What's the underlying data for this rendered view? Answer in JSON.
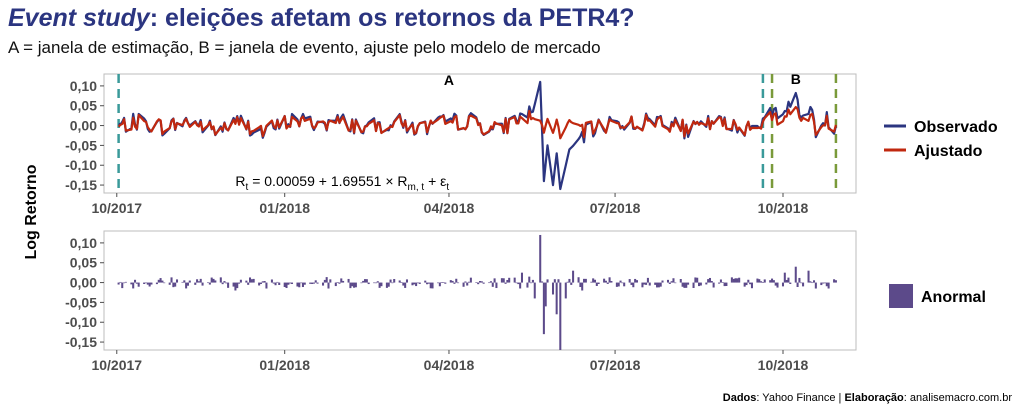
{
  "header": {
    "title_italic": "Event study",
    "title_rest": ": eleições afetam os retornos da PETR4?",
    "subtitle": "A = janela de estimação, B = janela de evento, ajuste pelo modelo de mercado"
  },
  "caption": {
    "dados_label": "Dados",
    "dados_value": ": Yahoo Finance | ",
    "elab_label": "Elaboração",
    "elab_value": ": analisemacro.com.br"
  },
  "colors": {
    "observado": "#2b3580",
    "ajustado": "#c0280f",
    "anormal": "#5c4a8a",
    "vline_teal": "#3a9a9a",
    "vline_green": "#7a9a3a",
    "panel_border": "#bdbdbd"
  },
  "chart_data": [
    {
      "type": "line",
      "panel": "top",
      "ylabel": "Log Retorno",
      "ylim": [
        -0.17,
        0.13
      ],
      "yticks": [
        "0,10",
        "0,05",
        "0,00",
        "-0,05",
        "-0,10",
        "-0,15"
      ],
      "ytick_values": [
        0.1,
        0.05,
        0.0,
        -0.05,
        -0.1,
        -0.15
      ],
      "xticks": [
        "10/2017",
        "01/2018",
        "04/2018",
        "07/2018",
        "10/2018"
      ],
      "xtick_dates": [
        "2017-10-01",
        "2018-01-01",
        "2018-04-01",
        "2018-07-01",
        "2018-10-01"
      ],
      "xlim": [
        "2017-09-24",
        "2018-11-10"
      ],
      "vlines": [
        {
          "date": "2017-10-02",
          "color": "teal"
        },
        {
          "date": "2018-09-20",
          "color": "teal"
        },
        {
          "date": "2018-09-25",
          "color": "green"
        },
        {
          "date": "2018-10-30",
          "color": "green"
        }
      ],
      "annotations": [
        {
          "text": "A",
          "date": "2018-04-01",
          "y": 0.115
        },
        {
          "text": "B",
          "date": "2018-10-08",
          "y": 0.118
        }
      ],
      "equation": {
        "lhs": "R",
        "lhs_sub": "t",
        "rhs1": " = 0.00059 + 1.69551 × R",
        "rhs1_sub": "m, t",
        "rhs2": " + ε",
        "rhs2_sub": "t",
        "date": "2017-12-05",
        "y": -0.14
      },
      "series": [
        {
          "name": "Observado",
          "anchors": [
            [
              "2017-10-02",
              0.0
            ],
            [
              "2017-10-13",
              0.01
            ],
            [
              "2017-10-27",
              -0.005
            ],
            [
              "2017-11-10",
              0.012
            ],
            [
              "2017-11-24",
              -0.012
            ],
            [
              "2017-12-08",
              0.01
            ],
            [
              "2017-12-20",
              -0.02
            ],
            [
              "2018-01-05",
              0.015
            ],
            [
              "2018-01-19",
              0.005
            ],
            [
              "2018-02-02",
              0.01
            ],
            [
              "2018-02-16",
              -0.008
            ],
            [
              "2018-03-02",
              0.012
            ],
            [
              "2018-03-16",
              -0.01
            ],
            [
              "2018-03-30",
              0.008
            ],
            [
              "2018-04-13",
              0.012
            ],
            [
              "2018-04-27",
              -0.015
            ],
            [
              "2018-05-09",
              0.02
            ],
            [
              "2018-05-17",
              0.035
            ],
            [
              "2018-05-21",
              0.11
            ],
            [
              "2018-05-23",
              -0.14
            ],
            [
              "2018-05-25",
              -0.05
            ],
            [
              "2018-05-28",
              -0.15
            ],
            [
              "2018-05-30",
              -0.07
            ],
            [
              "2018-06-01",
              -0.16
            ],
            [
              "2018-06-06",
              -0.06
            ],
            [
              "2018-06-15",
              -0.02
            ],
            [
              "2018-06-29",
              0.01
            ],
            [
              "2018-07-13",
              0.005
            ],
            [
              "2018-07-27",
              0.018
            ],
            [
              "2018-08-10",
              -0.015
            ],
            [
              "2018-08-24",
              0.01
            ],
            [
              "2018-09-07",
              -0.008
            ],
            [
              "2018-09-21",
              0.015
            ],
            [
              "2018-10-01",
              0.05
            ],
            [
              "2018-10-05",
              0.04
            ],
            [
              "2018-10-08",
              0.09
            ],
            [
              "2018-10-10",
              0.02
            ],
            [
              "2018-10-15",
              0.05
            ],
            [
              "2018-10-19",
              -0.01
            ],
            [
              "2018-10-25",
              0.015
            ],
            [
              "2018-10-30",
              -0.005
            ]
          ]
        },
        {
          "name": "Ajustado",
          "anchors": [
            [
              "2017-10-02",
              -0.005
            ],
            [
              "2017-10-13",
              0.008
            ],
            [
              "2017-10-27",
              -0.003
            ],
            [
              "2017-11-10",
              0.01
            ],
            [
              "2017-11-24",
              -0.01
            ],
            [
              "2017-12-08",
              0.008
            ],
            [
              "2017-12-20",
              -0.015
            ],
            [
              "2018-01-05",
              0.012
            ],
            [
              "2018-01-19",
              0.004
            ],
            [
              "2018-02-02",
              0.008
            ],
            [
              "2018-02-16",
              -0.006
            ],
            [
              "2018-03-02",
              0.01
            ],
            [
              "2018-03-16",
              -0.008
            ],
            [
              "2018-03-30",
              0.006
            ],
            [
              "2018-04-13",
              0.01
            ],
            [
              "2018-04-27",
              -0.012
            ],
            [
              "2018-05-09",
              0.015
            ],
            [
              "2018-05-17",
              0.02
            ],
            [
              "2018-05-21",
              0.01
            ],
            [
              "2018-05-23",
              -0.015
            ],
            [
              "2018-05-25",
              0.02
            ],
            [
              "2018-05-28",
              -0.02
            ],
            [
              "2018-05-30",
              0.015
            ],
            [
              "2018-06-01",
              -0.03
            ],
            [
              "2018-06-06",
              0.01
            ],
            [
              "2018-06-15",
              -0.015
            ],
            [
              "2018-06-29",
              0.008
            ],
            [
              "2018-07-13",
              0.004
            ],
            [
              "2018-07-27",
              0.015
            ],
            [
              "2018-08-10",
              -0.012
            ],
            [
              "2018-08-24",
              0.008
            ],
            [
              "2018-09-07",
              -0.006
            ],
            [
              "2018-09-21",
              0.01
            ],
            [
              "2018-10-01",
              0.03
            ],
            [
              "2018-10-05",
              0.025
            ],
            [
              "2018-10-08",
              0.05
            ],
            [
              "2018-10-10",
              0.015
            ],
            [
              "2018-10-15",
              0.03
            ],
            [
              "2018-10-19",
              -0.008
            ],
            [
              "2018-10-25",
              0.01
            ],
            [
              "2018-10-30",
              -0.003
            ]
          ]
        }
      ],
      "legend": {
        "position": "right",
        "entries": [
          "Observado",
          "Ajustado"
        ]
      }
    },
    {
      "type": "bar",
      "panel": "bottom",
      "ylim": [
        -0.17,
        0.13
      ],
      "yticks": [
        "0,10",
        "0,05",
        "0,00",
        "-0,05",
        "-0,10",
        "-0,15"
      ],
      "ytick_values": [
        0.1,
        0.05,
        0.0,
        -0.05,
        -0.1,
        -0.15
      ],
      "xticks": [
        "10/2017",
        "01/2018",
        "04/2018",
        "07/2018",
        "10/2018"
      ],
      "xtick_dates": [
        "2017-10-01",
        "2018-01-01",
        "2018-04-01",
        "2018-07-01",
        "2018-10-01"
      ],
      "xlim": [
        "2017-09-24",
        "2018-11-10"
      ],
      "series": [
        {
          "name": "Anormal",
          "highlights": [
            [
              "2017-12-05",
              -0.02
            ],
            [
              "2018-01-25",
              -0.015
            ],
            [
              "2018-05-04",
              0.012
            ],
            [
              "2018-05-11",
              0.025
            ],
            [
              "2018-05-15",
              0.015
            ],
            [
              "2018-05-18",
              -0.04
            ],
            [
              "2018-05-21",
              0.12
            ],
            [
              "2018-05-23",
              -0.13
            ],
            [
              "2018-05-24",
              -0.06
            ],
            [
              "2018-05-28",
              -0.03
            ],
            [
              "2018-05-30",
              -0.08
            ],
            [
              "2018-06-01",
              -0.17
            ],
            [
              "2018-06-04",
              -0.04
            ],
            [
              "2018-06-08",
              0.03
            ],
            [
              "2018-06-13",
              -0.02
            ],
            [
              "2018-10-02",
              0.025
            ],
            [
              "2018-10-08",
              0.04
            ],
            [
              "2018-10-15",
              0.03
            ],
            [
              "2018-10-19",
              -0.015
            ]
          ]
        }
      ],
      "legend": {
        "position": "right",
        "entries": [
          "Anormal"
        ]
      }
    }
  ]
}
